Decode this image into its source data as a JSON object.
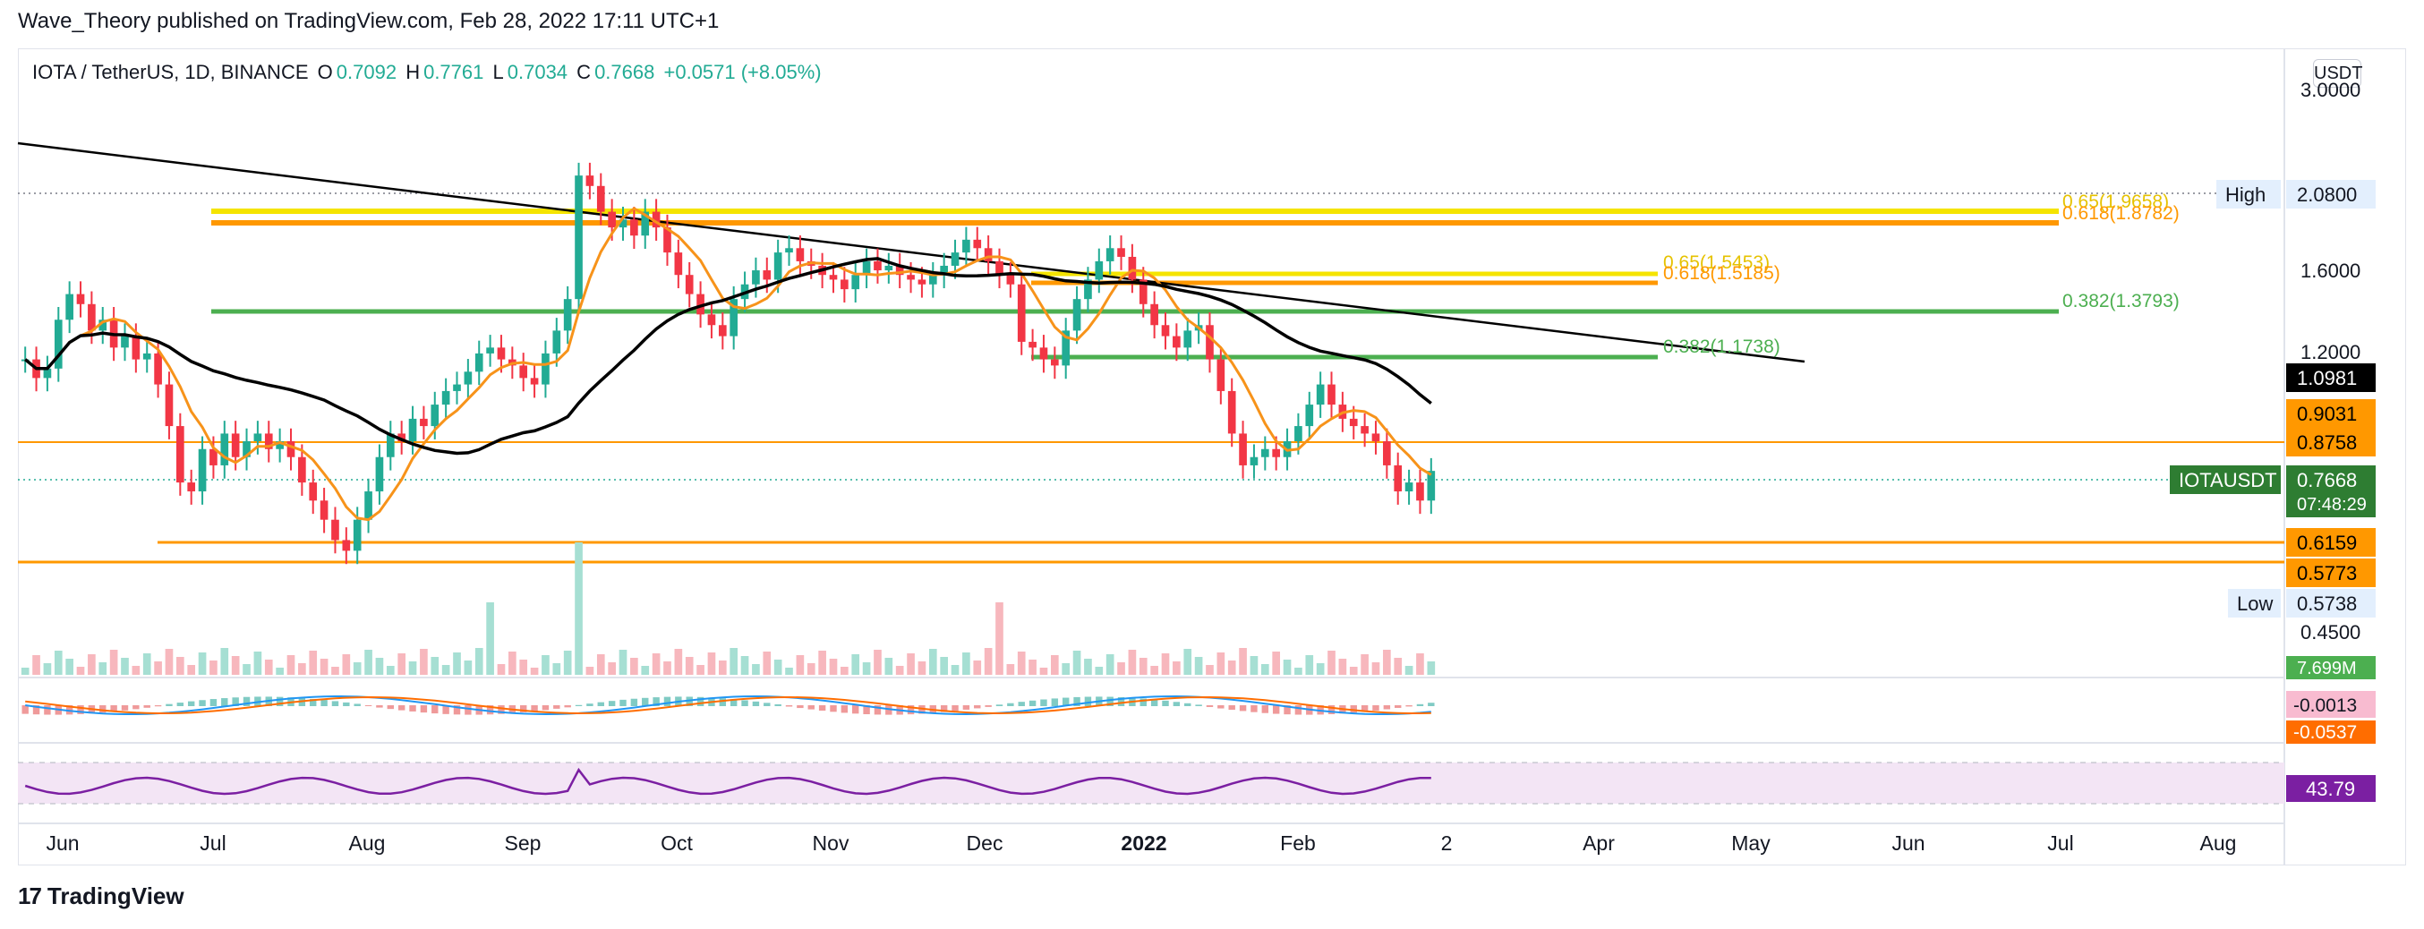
{
  "publisher_line": "Wave_Theory published on TradingView.com, Feb 28, 2022 17:11 UTC+1",
  "brand": {
    "logo_text": "TradingView",
    "logo_mark": "17"
  },
  "legend": {
    "symbol": "IOTA / TetherUS, 1D, BINANCE",
    "open_label": "O",
    "open": "0.7092",
    "high_label": "H",
    "high": "0.7761",
    "low_label": "L",
    "low": "0.7034",
    "close_label": "C",
    "close": "0.7668",
    "change": "+0.0571 (+8.05%)"
  },
  "currency_button": "USDT",
  "colors": {
    "up": "#22ab94",
    "down": "#f23645",
    "ema_orange": "#f7931a",
    "sma_black": "#000000",
    "fib_yellow": "#f5e400",
    "fib_orange": "#ff9800",
    "fib_green": "#4caf50",
    "rsi": "#7b1fa2",
    "macd_line": "#2196f3",
    "signal_line": "#ff6d00"
  },
  "chart_data": {
    "type": "candlestick",
    "title": "IOTA / TetherUS, 1D, BINANCE",
    "x_ticks": [
      "Jun",
      "Jul",
      "Aug",
      "Sep",
      "Oct",
      "Nov",
      "Dec",
      "2022",
      "Feb",
      "2",
      "Apr",
      "May",
      "Jun",
      "Jul",
      "Aug"
    ],
    "price_axis_ticks": [
      "3.0000",
      "2.0800",
      "1.6000",
      "1.2000",
      "0.4500"
    ],
    "price_labels": [
      {
        "text": "High",
        "value": "2.0800",
        "style": "plain"
      },
      {
        "text": "",
        "value": "1.0981",
        "style": "black"
      },
      {
        "text": "",
        "value": "0.9031",
        "style": "orange"
      },
      {
        "text": "",
        "value": "0.8758",
        "style": "orange"
      },
      {
        "text": "IOTAUSDT",
        "value": "0.7668",
        "style": "green",
        "sub": "07:48:29"
      },
      {
        "text": "",
        "value": "0.6159",
        "style": "orange"
      },
      {
        "text": "",
        "value": "0.5773",
        "style": "orange"
      },
      {
        "text": "Low",
        "value": "0.5738",
        "style": "plain"
      }
    ],
    "fib_levels": [
      {
        "label": "0.65(1.9658)",
        "color": "yellow"
      },
      {
        "label": "0.618(1.8782)",
        "color": "orange"
      },
      {
        "label": "0.382(1.3793)",
        "color": "green"
      },
      {
        "label": "0.65(1.5453)",
        "color": "yellow"
      },
      {
        "label": "0.618(1.5185)",
        "color": "orange"
      },
      {
        "label": "0.382(1.1738)",
        "color": "green"
      }
    ],
    "moving_averages": [
      {
        "color": "orange",
        "last": 0.9031
      },
      {
        "color": "black",
        "last": 1.0981
      }
    ],
    "volume_label": "7.699M",
    "macd_labels": [
      "-0.0013",
      "-0.0537"
    ],
    "rsi_label": "43.79",
    "close_series": [
      1.08,
      1.02,
      1.05,
      1.22,
      1.32,
      1.28,
      1.18,
      1.22,
      1.12,
      1.16,
      1.08,
      1.1,
      1.0,
      0.88,
      0.74,
      0.72,
      0.82,
      0.78,
      0.86,
      0.8,
      0.84,
      0.86,
      0.82,
      0.84,
      0.8,
      0.74,
      0.7,
      0.66,
      0.62,
      0.6,
      0.66,
      0.72,
      0.8,
      0.86,
      0.84,
      0.9,
      0.88,
      0.94,
      0.98,
      1.0,
      1.04,
      1.1,
      1.12,
      1.08,
      1.06,
      1.02,
      1.0,
      1.1,
      1.18,
      1.3,
      1.9,
      1.84,
      1.7,
      1.62,
      1.66,
      1.58,
      1.7,
      1.62,
      1.5,
      1.4,
      1.32,
      1.24,
      1.2,
      1.16,
      1.3,
      1.36,
      1.42,
      1.38,
      1.5,
      1.52,
      1.46,
      1.44,
      1.4,
      1.38,
      1.34,
      1.4,
      1.46,
      1.42,
      1.44,
      1.4,
      1.38,
      1.36,
      1.4,
      1.44,
      1.5,
      1.56,
      1.52,
      1.46,
      1.4,
      1.36,
      1.14,
      1.12,
      1.08,
      1.06,
      1.18,
      1.3,
      1.38,
      1.46,
      1.52,
      1.48,
      1.38,
      1.28,
      1.2,
      1.16,
      1.12,
      1.18,
      1.2,
      1.08,
      0.98,
      0.86,
      0.78,
      0.8,
      0.82,
      0.8,
      0.84,
      0.88,
      0.94,
      1.0,
      0.94,
      0.9,
      0.88,
      0.86,
      0.84,
      0.78,
      0.72,
      0.74,
      0.7,
      0.7668
    ]
  }
}
